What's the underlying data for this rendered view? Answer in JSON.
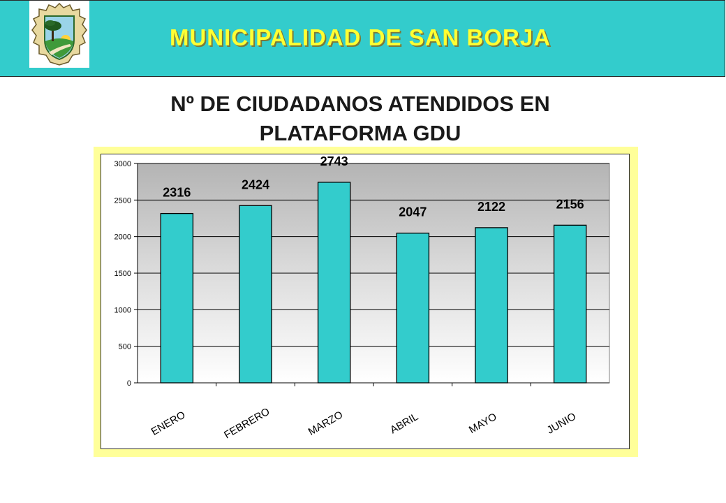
{
  "header": {
    "title": "MUNICIPALIDAD DE SAN BORJA",
    "logo_icon": "municipal-crest-icon",
    "colors": {
      "banner": "#33cccc",
      "title": "#ffff33"
    }
  },
  "page": {
    "title_line1": "Nº DE CIUDADANOS ATENDIDOS EN",
    "title_line2": "PLATAFORMA GDU"
  },
  "chart_data": {
    "type": "bar",
    "title": "Nº DE CIUDADANOS ATENDIDOS EN PLATAFORMA GDU",
    "xlabel": "",
    "ylabel": "",
    "categories": [
      "ENERO",
      "FEBRERO",
      "MARZO",
      "ABRIL",
      "MAYO",
      "JUNIO"
    ],
    "values": [
      2316,
      2424,
      2743,
      2047,
      2122,
      2156
    ],
    "data_labels": [
      "2316",
      "2424",
      "2743",
      "2047",
      "2122",
      "2156"
    ],
    "ylim": [
      0,
      3000
    ],
    "yticks": [
      0,
      500,
      1000,
      1500,
      2000,
      2500,
      3000
    ],
    "ytick_labels": [
      "0",
      "500",
      "1000",
      "1500",
      "2000",
      "2500",
      "3000"
    ],
    "grid": true,
    "legend": "none",
    "bar_color": "#33cccc",
    "frame_color": "#ffff99"
  }
}
